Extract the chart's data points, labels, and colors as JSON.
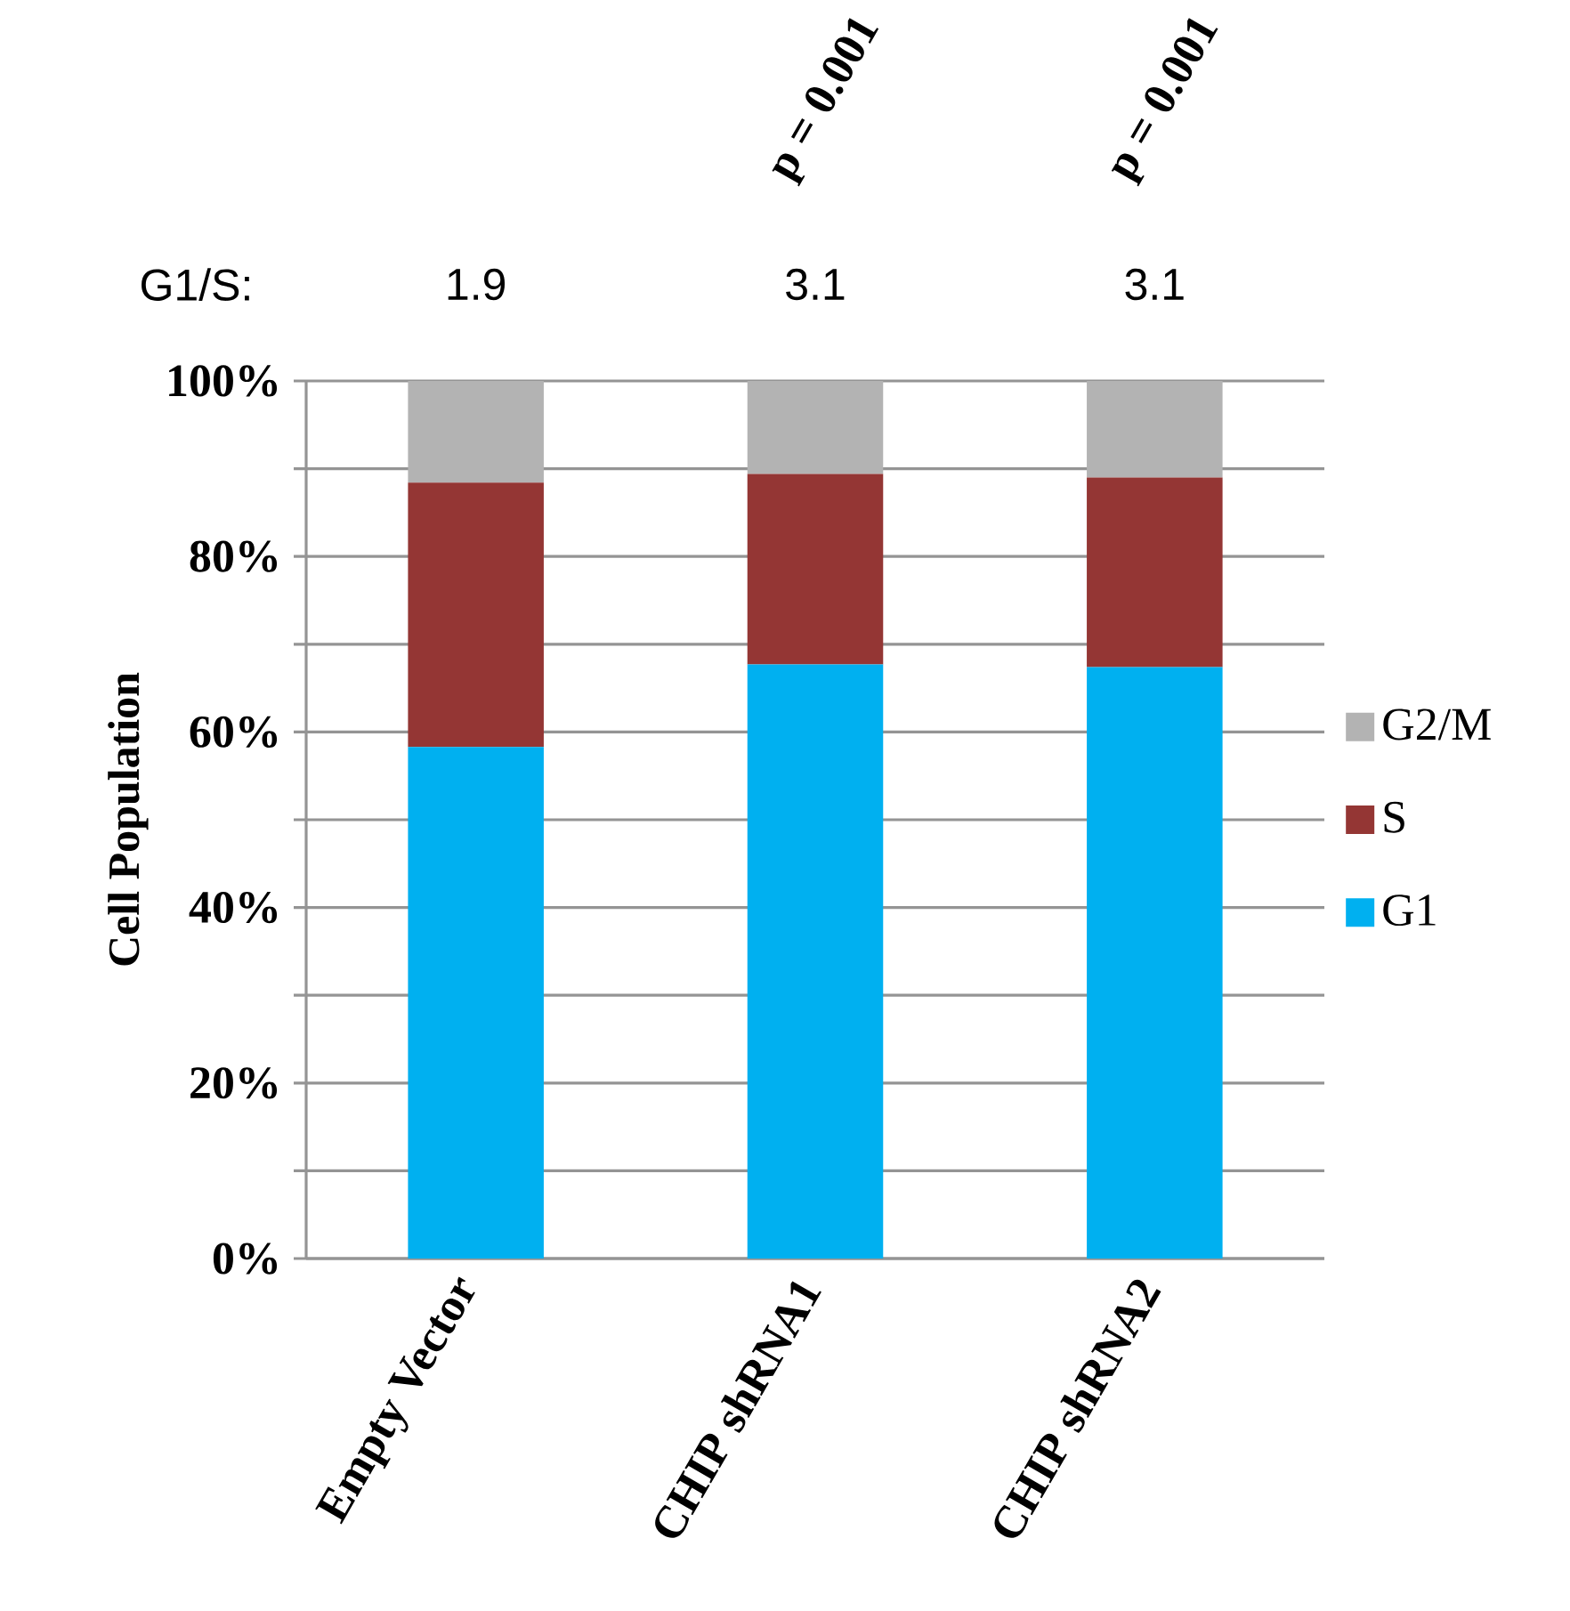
{
  "chart_data": {
    "type": "bar",
    "stacked": true,
    "ylabel": "Cell Population",
    "categories": [
      "Empty Vector",
      "CHIP shRNA1",
      "CHIP shRNA2"
    ],
    "series": [
      {
        "name": "G1",
        "color": "#00b0f0",
        "values": [
          58.3,
          67.7,
          67.4
        ]
      },
      {
        "name": "S",
        "color": "#943634",
        "values": [
          30.1,
          21.7,
          21.6
        ]
      },
      {
        "name": "G2/M",
        "color": "#b3b3b3",
        "values": [
          11.6,
          10.6,
          11.0
        ]
      }
    ],
    "ylim": [
      0,
      100
    ],
    "yticks": [
      {
        "value": 0,
        "label": "0%"
      },
      {
        "value": 10,
        "label": null
      },
      {
        "value": 20,
        "label": "20%"
      },
      {
        "value": 30,
        "label": null
      },
      {
        "value": 40,
        "label": "40%"
      },
      {
        "value": 50,
        "label": null
      },
      {
        "value": 60,
        "label": "60%"
      },
      {
        "value": 70,
        "label": null
      },
      {
        "value": 80,
        "label": "80%"
      },
      {
        "value": 90,
        "label": null
      },
      {
        "value": 100,
        "label": "100%"
      }
    ],
    "grid": "y",
    "legend": "right",
    "annotations": [
      "G1/S:",
      "1.9",
      "3.1",
      "3.1",
      "p = 0.001",
      "p = 0.001"
    ]
  }
}
